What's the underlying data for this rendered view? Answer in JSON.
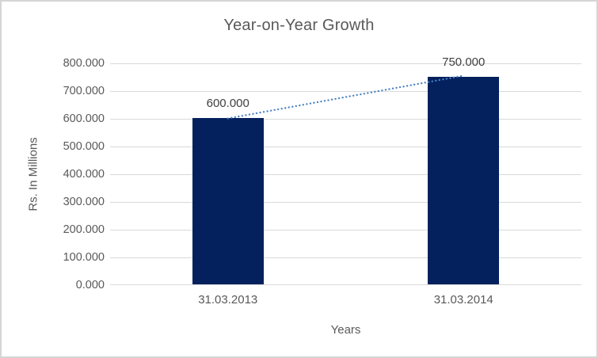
{
  "chart_data": {
    "type": "bar",
    "title": "Year-on-Year Growth",
    "xlabel": "Years",
    "ylabel": "Rs. In Millions",
    "categories": [
      "31.03.2013",
      "31.03.2014"
    ],
    "values": [
      600,
      750
    ],
    "value_labels": [
      "600.000",
      "750.000"
    ],
    "ylim": [
      0,
      800
    ],
    "yticks": [
      {
        "value": 0,
        "label": "0.000"
      },
      {
        "value": 100,
        "label": "100.000"
      },
      {
        "value": 200,
        "label": "200.000"
      },
      {
        "value": 300,
        "label": "300.000"
      },
      {
        "value": 400,
        "label": "400.000"
      },
      {
        "value": 500,
        "label": "500.000"
      },
      {
        "value": 600,
        "label": "600.000"
      },
      {
        "value": 700,
        "label": "700.000"
      },
      {
        "value": 800,
        "label": "800.000"
      }
    ],
    "grid": true,
    "legend": false,
    "trendline": {
      "style": "dotted",
      "connects_values": [
        600,
        750
      ],
      "color": "#4A82C4"
    },
    "colors": {
      "bar": "#04215D",
      "gridline": "#D9D9D9",
      "axis_line": "#D9D9D9",
      "axis_text": "#595959",
      "data_label": "#404040",
      "title_text": "#595959",
      "border": "#D5D5D5",
      "background": "#FFFFFF"
    }
  }
}
